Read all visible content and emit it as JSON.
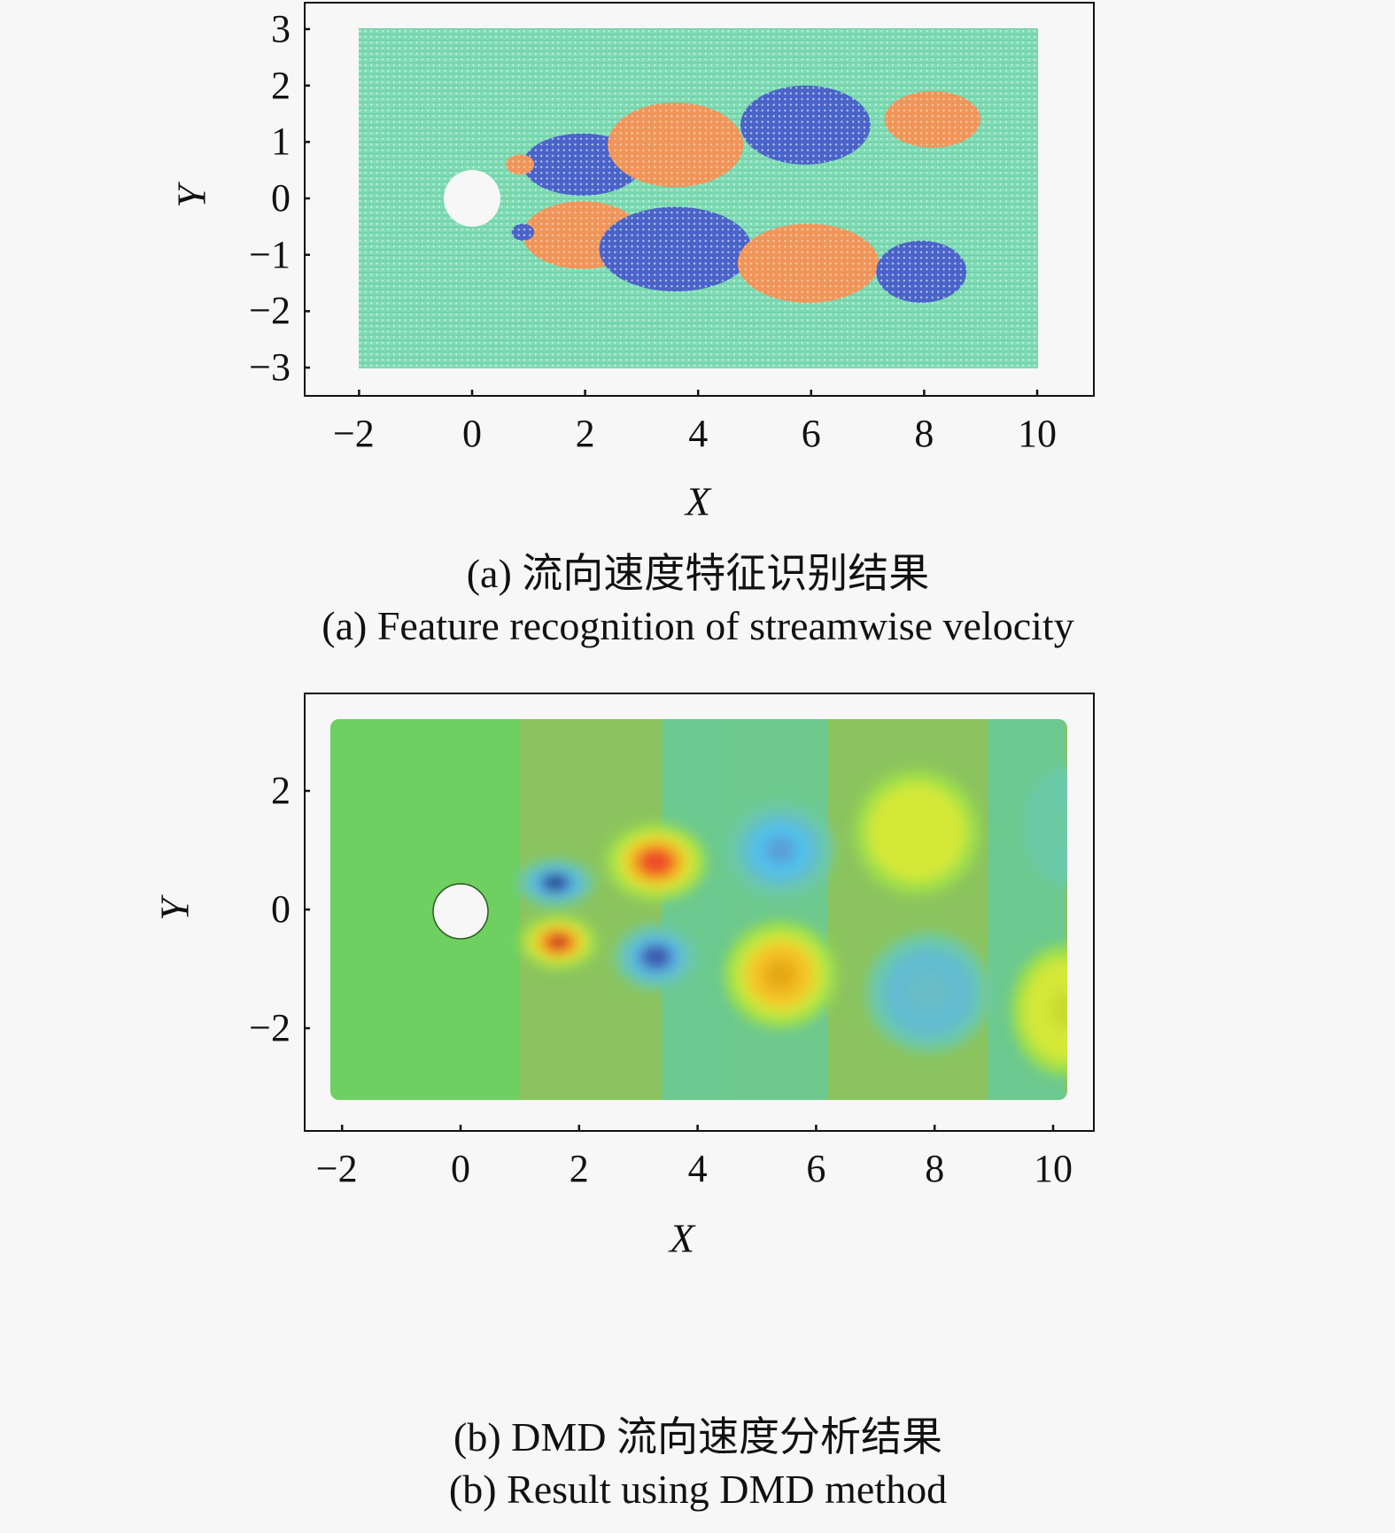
{
  "chart_data": [
    {
      "id": "a",
      "type": "scatter",
      "subtype": "clustered-grid-points",
      "title": "",
      "caption_cn": "(a) 流向速度特征识别结果",
      "caption_en": "(a) Feature recognition of streamwise velocity",
      "xlabel": "X",
      "ylabel": "Y",
      "xlim": [
        -2.5,
        10.5
      ],
      "ylim": [
        -3.5,
        3.5
      ],
      "xticks": [
        -2,
        0,
        2,
        4,
        6,
        8,
        10
      ],
      "yticks": [
        3,
        2,
        1,
        0,
        -1,
        -2,
        -3
      ],
      "grid": false,
      "legend": null,
      "domain_extent": {
        "x": [
          -2,
          10
        ],
        "y": [
          -3,
          3
        ]
      },
      "cylinder": {
        "cx": 0,
        "cy": 0,
        "r": 0.5
      },
      "colors": {
        "background_cluster": "#7fdbb4",
        "positive_cluster": "#f0955a",
        "negative_cluster": "#4a63c8"
      },
      "clusters": [
        {
          "label": "negative",
          "color": "#4a63c8",
          "cx": 1.95,
          "cy": 0.6,
          "rx": 1.05,
          "ry": 0.55
        },
        {
          "label": "positive",
          "color": "#f0955a",
          "cx": 3.6,
          "cy": 0.95,
          "rx": 1.2,
          "ry": 0.75
        },
        {
          "label": "negative",
          "color": "#4a63c8",
          "cx": 5.9,
          "cy": 1.3,
          "rx": 1.15,
          "ry": 0.7
        },
        {
          "label": "positive",
          "color": "#f0955a",
          "cx": 8.15,
          "cy": 1.4,
          "rx": 0.85,
          "ry": 0.5
        },
        {
          "label": "positive",
          "color": "#f0955a",
          "cx": 1.95,
          "cy": -0.65,
          "rx": 1.05,
          "ry": 0.6
        },
        {
          "label": "negative",
          "color": "#4a63c8",
          "cx": 3.6,
          "cy": -0.9,
          "rx": 1.35,
          "ry": 0.75
        },
        {
          "label": "positive",
          "color": "#f0955a",
          "cx": 5.95,
          "cy": -1.15,
          "rx": 1.25,
          "ry": 0.7
        },
        {
          "label": "negative",
          "color": "#4a63c8",
          "cx": 7.95,
          "cy": -1.3,
          "rx": 0.8,
          "ry": 0.55
        },
        {
          "label": "positive",
          "color": "#f0955a",
          "cx": 0.85,
          "cy": 0.6,
          "rx": 0.25,
          "ry": 0.18
        },
        {
          "label": "negative",
          "color": "#4a63c8",
          "cx": 0.9,
          "cy": -0.6,
          "rx": 0.2,
          "ry": 0.15
        }
      ]
    },
    {
      "id": "b",
      "type": "heatmap",
      "subtype": "scattered-colormap-field",
      "title": "",
      "caption_cn": "(b) DMD 流向速度分析结果",
      "caption_en": "(b) Result using DMD method",
      "xlabel": "X",
      "ylabel": "Y",
      "xlim": [
        -2.5,
        10.7
      ],
      "ylim": [
        -3.7,
        3.7
      ],
      "xticks": [
        -2,
        0,
        2,
        4,
        6,
        8,
        10
      ],
      "yticks": [
        2,
        0,
        -2
      ],
      "grid": false,
      "legend": null,
      "colormap": "jet",
      "domain_extent": {
        "x": [
          -2.2,
          10.2
        ],
        "y": [
          -3.2,
          3.2
        ]
      },
      "cylinder": {
        "cx": 0,
        "cy": 0,
        "r": 0.47
      },
      "colors": {
        "base": "#8bc45e",
        "neutral_green": "#6dd060",
        "teal": "#6cc98f"
      },
      "bands": [
        {
          "x0": -2.2,
          "x1": 1.0,
          "color": "#6dd060"
        },
        {
          "x0": 1.0,
          "x1": 3.4,
          "color": "#8bc45e"
        },
        {
          "x0": 3.4,
          "x1": 4.6,
          "color": "#6cc98f"
        },
        {
          "x0": 4.6,
          "x1": 6.2,
          "color": "#6dc98e"
        },
        {
          "x0": 6.2,
          "x1": 8.9,
          "color": "#8bc45e"
        },
        {
          "x0": 8.9,
          "x1": 10.2,
          "color": "#6cc98f"
        }
      ],
      "structures": [
        {
          "sign": "negative",
          "cx": 1.6,
          "cy": 0.45,
          "rx": 0.65,
          "ry": 0.4,
          "peak": -1.0,
          "core": "#23408e"
        },
        {
          "sign": "positive",
          "cx": 1.65,
          "cy": -0.55,
          "rx": 0.65,
          "ry": 0.45,
          "peak": 1.0,
          "core": "#8b1a1a"
        },
        {
          "sign": "positive",
          "cx": 3.3,
          "cy": 0.8,
          "rx": 0.85,
          "ry": 0.65,
          "peak": 0.75,
          "core": "#f2502a"
        },
        {
          "sign": "negative",
          "cx": 3.3,
          "cy": -0.8,
          "rx": 0.7,
          "ry": 0.55,
          "peak": -0.85,
          "core": "#3b56a8"
        },
        {
          "sign": "negative",
          "cx": 5.4,
          "cy": 1.0,
          "rx": 0.9,
          "ry": 0.8,
          "peak": -0.45,
          "core": "#5a9ed8"
        },
        {
          "sign": "positive",
          "cx": 5.4,
          "cy": -1.1,
          "rx": 0.95,
          "ry": 0.9,
          "peak": 0.55,
          "core": "#e6a817"
        },
        {
          "sign": "positive",
          "cx": 7.7,
          "cy": 1.3,
          "rx": 1.05,
          "ry": 1.05,
          "peak": 0.35,
          "core": "#d4e838"
        },
        {
          "sign": "negative",
          "cx": 7.9,
          "cy": -1.4,
          "rx": 1.05,
          "ry": 1.0,
          "peak": -0.25,
          "core": "#6bbdc6"
        },
        {
          "sign": "positive",
          "cx": 10.2,
          "cy": -1.7,
          "rx": 0.9,
          "ry": 1.1,
          "peak": 0.3,
          "core": "#c9dc2e"
        },
        {
          "sign": "negative",
          "cx": 10.2,
          "cy": 1.4,
          "rx": 0.7,
          "ry": 1.0,
          "peak": -0.15,
          "core": "#6cc9a0"
        }
      ]
    }
  ],
  "panels": {
    "a": {
      "x_tick_labels": [
        "−2",
        "0",
        "2",
        "4",
        "6",
        "8",
        "10"
      ],
      "y_tick_labels": [
        "3",
        "2",
        "1",
        "0",
        "−1",
        "−2",
        "−3"
      ],
      "xlabel": "X",
      "ylabel": "Y",
      "caption_cn": "(a) 流向速度特征识别结果",
      "caption_en": "(a) Feature recognition of streamwise velocity"
    },
    "b": {
      "x_tick_labels": [
        "−2",
        "0",
        "2",
        "4",
        "6",
        "8",
        "10"
      ],
      "y_tick_labels": [
        "2",
        "0",
        "−2"
      ],
      "xlabel": "X",
      "ylabel": "Y",
      "caption_cn": "(b) DMD 流向速度分析结果",
      "caption_en": "(b) Result using DMD method"
    }
  }
}
